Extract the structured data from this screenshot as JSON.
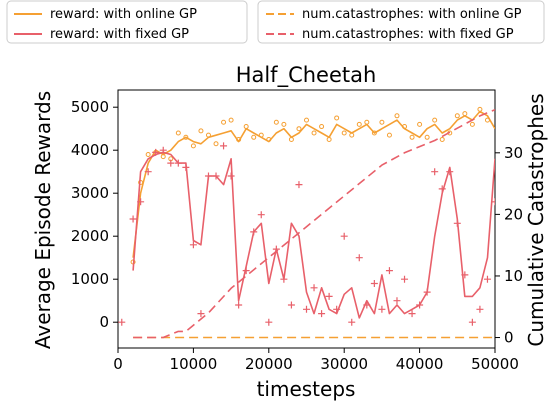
{
  "chart_data": {
    "type": "line",
    "title": "Half_Cheetah",
    "xlabel": "timesteps",
    "ylabel": "Average Episode Rewards",
    "y2label": "Cumulative Catastrophes",
    "xlim": [
      0,
      50000
    ],
    "ylim": [
      -600,
      5400
    ],
    "y2lim": [
      -1.7,
      40.2
    ],
    "xticks": [
      0,
      10000,
      20000,
      30000,
      40000,
      50000
    ],
    "yticks": [
      0,
      1000,
      2000,
      3000,
      4000,
      5000
    ],
    "y2ticks": [
      0,
      10,
      20,
      30
    ],
    "colors": {
      "online": "#f5a033",
      "fixed": "#e8606a"
    },
    "legend": {
      "left": [
        {
          "label": "reward: with online GP",
          "color": "#f5a033",
          "style": "solid"
        },
        {
          "label": "reward: with fixed GP",
          "color": "#e8606a",
          "style": "solid"
        }
      ],
      "right": [
        {
          "label": "num.catastrophes: with online GP",
          "color": "#f5a033",
          "style": "dashed"
        },
        {
          "label": "num.catastrophes: with fixed GP",
          "color": "#e8606a",
          "style": "dashed"
        }
      ]
    },
    "series": [
      {
        "name": "reward: with online GP",
        "axis": "left",
        "style": "solid",
        "color": "#f5a033",
        "x": [
          2000,
          3000,
          4000,
          5000,
          6000,
          7000,
          8000,
          9000,
          10000,
          11000,
          12000,
          13000,
          14000,
          15000,
          16000,
          17000,
          18000,
          19000,
          20000,
          21000,
          22000,
          23000,
          24000,
          25000,
          26000,
          27000,
          28000,
          29000,
          30000,
          31000,
          32000,
          33000,
          34000,
          35000,
          36000,
          37000,
          38000,
          39000,
          40000,
          41000,
          42000,
          43000,
          44000,
          45000,
          46000,
          47000,
          48000,
          49000,
          50000
        ],
        "y": [
          1500,
          3000,
          3700,
          4000,
          3900,
          4000,
          4200,
          4300,
          4200,
          4150,
          4300,
          4350,
          4400,
          4450,
          4200,
          4500,
          4400,
          4300,
          4200,
          4400,
          4500,
          4300,
          4400,
          4600,
          4500,
          4400,
          4300,
          4600,
          4500,
          4400,
          4500,
          4600,
          4400,
          4500,
          4600,
          4700,
          4500,
          4400,
          4300,
          4500,
          4600,
          4400,
          4500,
          4700,
          4800,
          4700,
          4900,
          4800,
          4500
        ]
      },
      {
        "name": "reward: with online GP (points)",
        "axis": "left",
        "style": "points-circle",
        "color": "#f5a033",
        "x": [
          2000,
          3000,
          4000,
          5000,
          6000,
          7000,
          8000,
          9000,
          10000,
          11000,
          12000,
          13000,
          14000,
          15000,
          16000,
          17000,
          18000,
          19000,
          20000,
          21000,
          22000,
          23000,
          24000,
          25000,
          26000,
          27000,
          28000,
          29000,
          30000,
          31000,
          32000,
          33000,
          34000,
          35000,
          36000,
          37000,
          38000,
          39000,
          40000,
          41000,
          42000,
          43000,
          44000,
          45000,
          46000,
          47000,
          48000,
          49000
        ],
        "y": [
          1400,
          3250,
          3900,
          3950,
          3850,
          3800,
          4400,
          4300,
          4100,
          4450,
          4350,
          4150,
          4650,
          4700,
          4250,
          4550,
          4300,
          4350,
          4250,
          4650,
          4600,
          4250,
          4500,
          4700,
          4400,
          4550,
          4250,
          4750,
          4400,
          4350,
          4600,
          4650,
          4400,
          4650,
          4350,
          4800,
          4550,
          4300,
          4600,
          4300,
          4700,
          4250,
          4400,
          4800,
          4850,
          4600,
          4950,
          4700
        ]
      },
      {
        "name": "reward: with fixed GP",
        "axis": "left",
        "style": "solid",
        "color": "#e8606a",
        "x": [
          2000,
          3000,
          4000,
          5000,
          6000,
          7000,
          8000,
          9000,
          10000,
          11000,
          12000,
          13000,
          14000,
          15000,
          16000,
          17000,
          18000,
          19000,
          20000,
          21000,
          22000,
          23000,
          24000,
          25000,
          26000,
          27000,
          28000,
          29000,
          30000,
          31000,
          32000,
          33000,
          34000,
          35000,
          36000,
          37000,
          38000,
          39000,
          40000,
          41000,
          42000,
          43000,
          44000,
          45000,
          46000,
          47000,
          48000,
          49000,
          50000
        ],
        "y": [
          1200,
          3500,
          3800,
          3900,
          3950,
          3900,
          3700,
          3700,
          1900,
          1800,
          3400,
          3400,
          3200,
          3800,
          500,
          1300,
          2100,
          2300,
          900,
          1700,
          1000,
          2300,
          2000,
          700,
          200,
          800,
          300,
          200,
          650,
          800,
          100,
          500,
          200,
          1100,
          200,
          400,
          200,
          300,
          400,
          700,
          2000,
          3000,
          3600,
          2400,
          600,
          600,
          800,
          1500,
          3800
        ]
      },
      {
        "name": "reward: with fixed GP (points)",
        "axis": "left",
        "style": "points-plus",
        "color": "#e8606a",
        "x": [
          500,
          2000,
          3000,
          4000,
          5000,
          6000,
          7000,
          8000,
          9000,
          10000,
          11000,
          12000,
          13000,
          14000,
          15000,
          16000,
          17000,
          18000,
          19000,
          20000,
          21000,
          22000,
          23000,
          24000,
          25000,
          26000,
          27000,
          28000,
          29000,
          30000,
          31000,
          32000,
          33000,
          34000,
          35000,
          36000,
          37000,
          38000,
          39000,
          40000,
          41000,
          42000,
          43000,
          44000,
          45000,
          46000,
          47000,
          48000,
          49000,
          50000
        ],
        "y": [
          0,
          2400,
          2800,
          3500,
          3950,
          4000,
          3700,
          3700,
          3600,
          1800,
          200,
          3400,
          3400,
          4100,
          3400,
          400,
          1200,
          2100,
          2500,
          0,
          1700,
          1000,
          400,
          3200,
          300,
          800,
          200,
          600,
          300,
          2000,
          0,
          1500,
          400,
          900,
          300,
          1200,
          500,
          1000,
          200,
          400,
          700,
          3500,
          3100,
          3500,
          2300,
          1100,
          0,
          300,
          1000,
          2800
        ]
      },
      {
        "name": "num.catastrophes: with online GP",
        "axis": "right",
        "style": "dashed",
        "color": "#f5a033",
        "x": [
          2000,
          50000
        ],
        "y": [
          0,
          0
        ]
      },
      {
        "name": "num.catastrophes: with fixed GP",
        "axis": "right",
        "style": "dashed",
        "color": "#e8606a",
        "x": [
          2000,
          6000,
          8000,
          9000,
          10000,
          12000,
          15000,
          20000,
          25000,
          30000,
          35000,
          38000,
          40000,
          42000,
          45000,
          48000,
          50000
        ],
        "y": [
          0,
          0,
          1,
          1,
          2,
          4,
          8,
          13,
          18,
          23,
          28,
          30,
          31,
          32,
          34,
          36,
          37
        ]
      }
    ]
  }
}
